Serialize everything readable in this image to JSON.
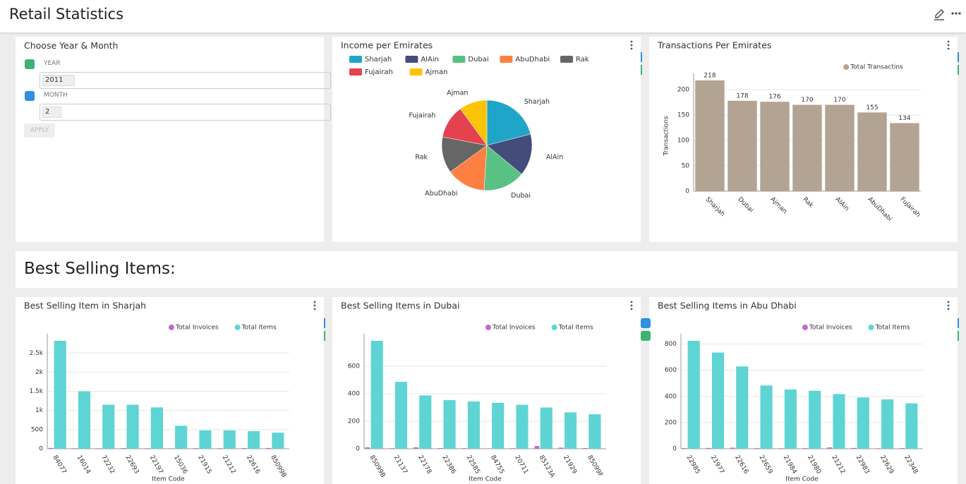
{
  "header": {
    "title": "Retail Statistics"
  },
  "filters": {
    "title": "Choose Year & Month",
    "fields": [
      {
        "label": "YEAR",
        "selected": "2011"
      },
      {
        "label": "MONTH",
        "selected": "2"
      }
    ],
    "button": "APPLY"
  },
  "section_title": "Best Selling Items:",
  "chart_data": [
    {
      "type": "pie",
      "title": "Income per Emirates",
      "categories": [
        "Sharjah",
        "AlAin",
        "Dubai",
        "AbuDhabi",
        "Rak",
        "Fujairah",
        "Ajman"
      ],
      "values": [
        21,
        15,
        15,
        14,
        13,
        12,
        10
      ],
      "colors": [
        "#1fa5c8",
        "#434c7a",
        "#5ac184",
        "#fd8043",
        "#666666",
        "#e5424f",
        "#fbc408"
      ]
    },
    {
      "type": "bar",
      "title": "Transactions Per Emirates",
      "y_label": "Transactions",
      "categories": [
        "Sharjah",
        "Dubai",
        "Ajman",
        "Rak",
        "AlAin",
        "AbuDhabi",
        "Fujairah"
      ],
      "series": [
        {
          "name": "Total Transactins",
          "color": "#b3a392",
          "values": [
            218,
            178,
            176,
            170,
            170,
            155,
            134
          ]
        }
      ],
      "ylim": [
        0,
        218
      ],
      "yticks": [
        0,
        50,
        100,
        150,
        200
      ],
      "grid": true,
      "data_labels": true
    },
    {
      "type": "bar",
      "title": "Best Selling Item in Sharjah",
      "x_label": "Item Code",
      "categories": [
        "84077",
        "16014",
        "72232",
        "22693",
        "22197",
        "15036",
        "21915",
        "21212",
        "22616",
        "85099B"
      ],
      "series": [
        {
          "name": "Total Invoices",
          "color": "#c06ccf",
          "values": [
            20,
            15,
            12,
            18,
            14,
            10,
            16,
            15,
            17,
            20
          ]
        },
        {
          "name": "Total Items",
          "color": "#5fd4d4",
          "values": [
            2820,
            1500,
            1150,
            1150,
            1080,
            600,
            480,
            480,
            460,
            420
          ]
        }
      ],
      "ylim": [
        0,
        2820
      ],
      "yticks": [
        0,
        500,
        {
          "value": 1000,
          "label": "1k"
        },
        {
          "value": 1500,
          "label": "1.5k"
        },
        {
          "value": 2000,
          "label": "2k"
        },
        {
          "value": 2500,
          "label": "2.5k"
        }
      ],
      "grid": true
    },
    {
      "type": "bar",
      "title": "Best Selling Items in Dubai",
      "x_label": "Item Code",
      "categories": [
        "85099B",
        "21137",
        "22178",
        "22386",
        "22585",
        "84755",
        "20711",
        "85123A",
        "21929",
        "85099F"
      ],
      "series": [
        {
          "name": "Total Invoices",
          "color": "#c06ccf",
          "values": [
            10,
            4,
            10,
            5,
            4,
            3,
            4,
            20,
            8,
            5
          ]
        },
        {
          "name": "Total Items",
          "color": "#5fd4d4",
          "values": [
            786,
            487,
            388,
            354,
            344,
            334,
            320,
            300,
            265,
            251
          ]
        }
      ],
      "ylim": [
        0,
        786
      ],
      "yticks": [
        0,
        200,
        400,
        600
      ],
      "grid": true
    },
    {
      "type": "bar",
      "title": "Best Selling Items in Abu Dhabi",
      "x_label": "Item Code",
      "categories": [
        "22985",
        "21977",
        "22616",
        "22659",
        "21984",
        "21980",
        "21212",
        "22983",
        "22629",
        "22348"
      ],
      "series": [
        {
          "name": "Total Invoices",
          "color": "#c06ccf",
          "values": [
            5,
            6,
            8,
            5,
            4,
            5,
            10,
            6,
            4,
            5
          ]
        },
        {
          "name": "Total Items",
          "color": "#5fd4d4",
          "values": [
            825,
            735,
            629,
            483,
            453,
            443,
            418,
            392,
            377,
            347
          ]
        }
      ],
      "ylim": [
        0,
        825
      ],
      "yticks": [
        0,
        200,
        400,
        600,
        800
      ],
      "grid": true
    }
  ]
}
